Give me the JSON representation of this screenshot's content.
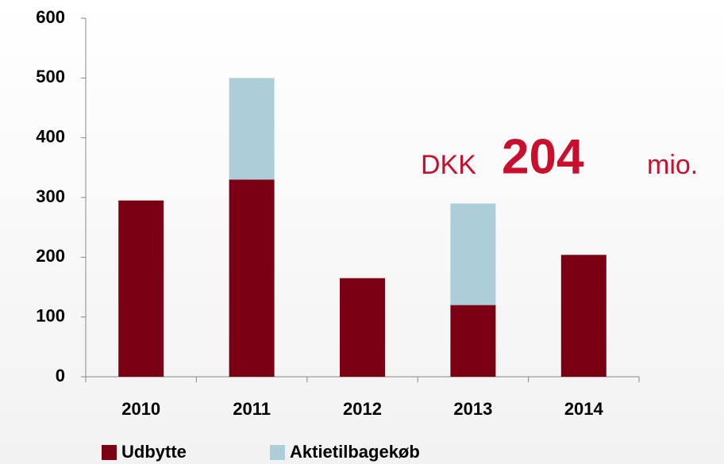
{
  "chart_data": {
    "type": "stacked_bar",
    "categories": [
      "2010",
      "2011",
      "2012",
      "2013",
      "2014"
    ],
    "series": [
      {
        "name": "Udbytte",
        "color": "#7b0013",
        "values": [
          295,
          330,
          165,
          120,
          204
        ]
      },
      {
        "name": "Aktietilbagekøb",
        "color": "#adcdd9",
        "values": [
          null,
          170,
          null,
          170,
          null
        ]
      }
    ],
    "ylim": [
      0,
      600
    ],
    "yticks": [
      0,
      100,
      200,
      300,
      400,
      500,
      600
    ],
    "annotation": [
      "DKK",
      "204",
      "mio."
    ],
    "annotation_color": "#c8102e",
    "legend": "bottom"
  }
}
